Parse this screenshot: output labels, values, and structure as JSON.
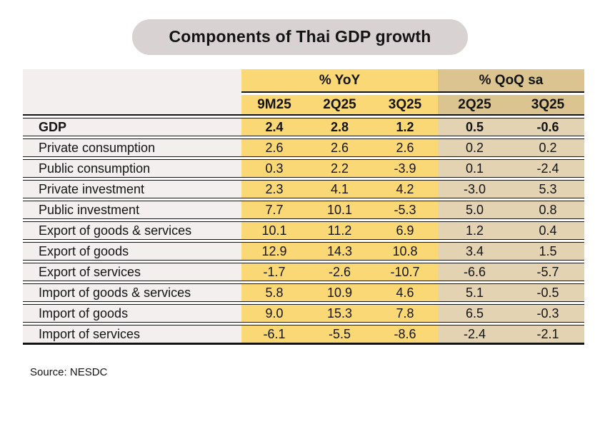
{
  "title": "Components of Thai GDP growth",
  "source": "Source: NESDC",
  "colors": {
    "pill_bg": "#d9d2d2",
    "yoy_bg": "#fbd876",
    "qoq_header_bg": "#dbc48f",
    "qoq_cell_bg": "#e3d3b2",
    "label_bg": "#f2efee",
    "rule": "#141414"
  },
  "table": {
    "group_headers": [
      {
        "label": "% YoY",
        "span": 3
      },
      {
        "label": "% QoQ sa",
        "span": 2
      }
    ],
    "col_headers": [
      "9M25",
      "2Q25",
      "3Q25",
      "2Q25",
      "3Q25"
    ],
    "rows": [
      {
        "label": "GDP",
        "bold": true,
        "values": [
          "2.4",
          "2.8",
          "1.2",
          "0.5",
          "-0.6"
        ]
      },
      {
        "label": "Private consumption",
        "bold": false,
        "values": [
          "2.6",
          "2.6",
          "2.6",
          "0.2",
          "0.2"
        ]
      },
      {
        "label": "Public consumption",
        "bold": false,
        "values": [
          "0.3",
          "2.2",
          "-3.9",
          "0.1",
          "-2.4"
        ]
      },
      {
        "label": "Private investment",
        "bold": false,
        "values": [
          "2.3",
          "4.1",
          "4.2",
          "-3.0",
          "5.3"
        ]
      },
      {
        "label": "Public investment",
        "bold": false,
        "values": [
          "7.7",
          "10.1",
          "-5.3",
          "5.0",
          "0.8"
        ]
      },
      {
        "label": "Export of goods & services",
        "bold": false,
        "values": [
          "10.1",
          "11.2",
          "6.9",
          "1.2",
          "0.4"
        ]
      },
      {
        "label": "Export of goods",
        "bold": false,
        "values": [
          "12.9",
          "14.3",
          "10.8",
          "3.4",
          "1.5"
        ]
      },
      {
        "label": "Export of services",
        "bold": false,
        "values": [
          "-1.7",
          "-2.6",
          "-10.7",
          "-6.6",
          "-5.7"
        ]
      },
      {
        "label": "Import of goods & services",
        "bold": false,
        "values": [
          "5.8",
          "10.9",
          "4.6",
          "5.1",
          "-0.5"
        ]
      },
      {
        "label": "Import of goods",
        "bold": false,
        "values": [
          "9.0",
          "15.3",
          "7.8",
          "6.5",
          "-0.3"
        ]
      },
      {
        "label": "Import of services",
        "bold": false,
        "values": [
          "-6.1",
          "-5.5",
          "-8.6",
          "-2.4",
          "-2.1"
        ]
      }
    ]
  },
  "chart_data": {
    "type": "table",
    "title": "Components of Thai GDP growth",
    "columns": [
      "% YoY 9M25",
      "% YoY 2Q25",
      "% YoY 3Q25",
      "% QoQ sa 2Q25",
      "% QoQ sa 3Q25"
    ],
    "rows": [
      {
        "component": "GDP",
        "values": [
          2.4,
          2.8,
          1.2,
          0.5,
          -0.6
        ]
      },
      {
        "component": "Private consumption",
        "values": [
          2.6,
          2.6,
          2.6,
          0.2,
          0.2
        ]
      },
      {
        "component": "Public consumption",
        "values": [
          0.3,
          2.2,
          -3.9,
          0.1,
          -2.4
        ]
      },
      {
        "component": "Private investment",
        "values": [
          2.3,
          4.1,
          4.2,
          -3.0,
          5.3
        ]
      },
      {
        "component": "Public investment",
        "values": [
          7.7,
          10.1,
          -5.3,
          5.0,
          0.8
        ]
      },
      {
        "component": "Export of goods & services",
        "values": [
          10.1,
          11.2,
          6.9,
          1.2,
          0.4
        ]
      },
      {
        "component": "Export of goods",
        "values": [
          12.9,
          14.3,
          10.8,
          3.4,
          1.5
        ]
      },
      {
        "component": "Export of services",
        "values": [
          -1.7,
          -2.6,
          -10.7,
          -6.6,
          -5.7
        ]
      },
      {
        "component": "Import of goods & services",
        "values": [
          5.8,
          10.9,
          4.6,
          5.1,
          -0.5
        ]
      },
      {
        "component": "Import of goods",
        "values": [
          9.0,
          15.3,
          7.8,
          6.5,
          -0.3
        ]
      },
      {
        "component": "Import of services",
        "values": [
          -6.1,
          -5.5,
          -8.6,
          -2.4,
          -2.1
        ]
      }
    ],
    "source": "NESDC"
  }
}
